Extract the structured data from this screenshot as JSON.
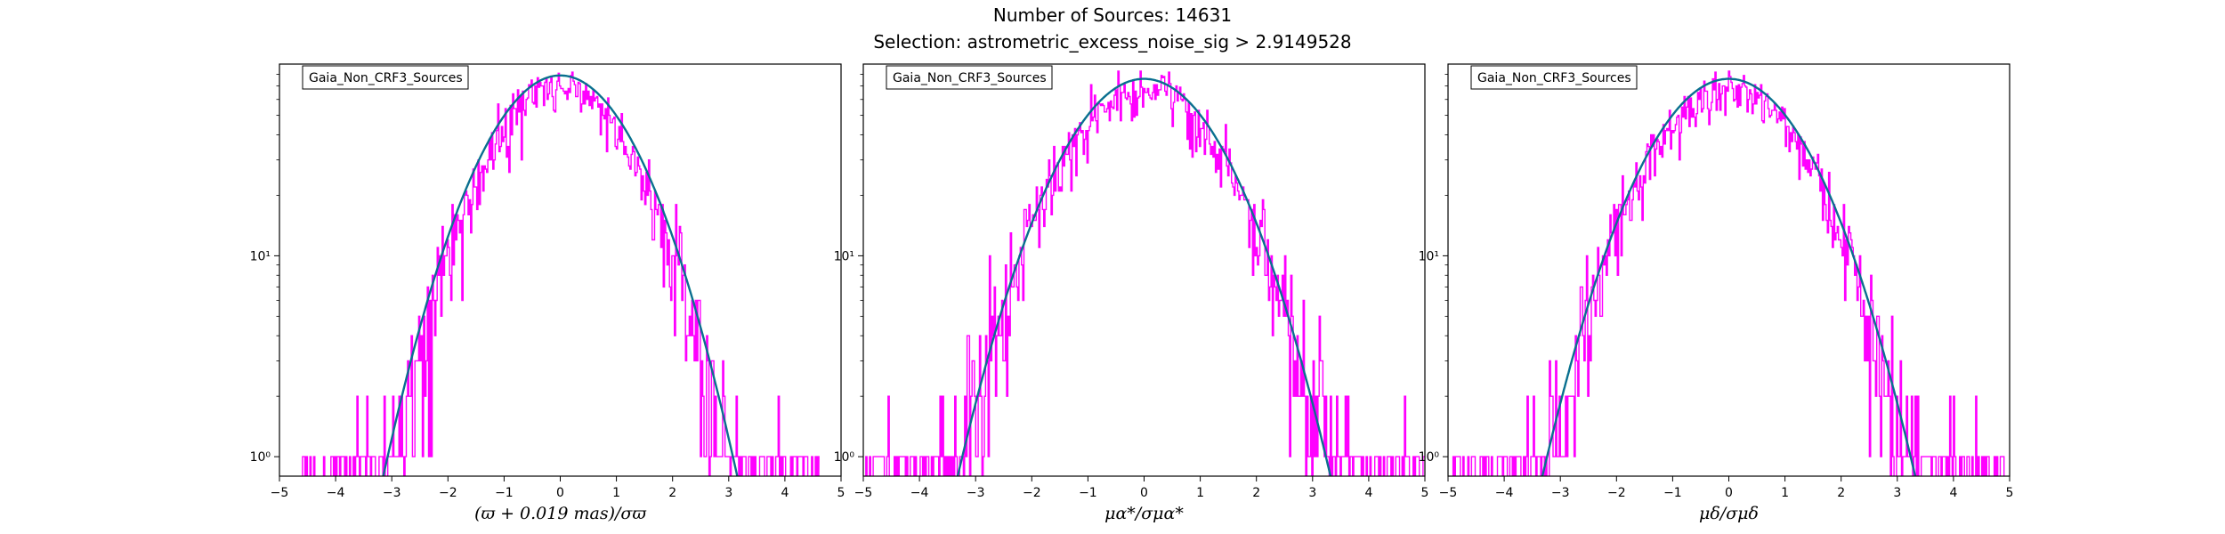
{
  "figure": {
    "title_line1": "Number of Sources: 14631",
    "title_line2": "Selection: astrometric_excess_noise_sig > 2.9149528"
  },
  "chart_data": [
    {
      "type": "line",
      "legend": "Gaia_Non_CRF3_Sources",
      "legend_placement": "top-left",
      "xlabel": "(ϖ + 0.019 mas)/σϖ",
      "xlim": [
        -5,
        5
      ],
      "ylim": [
        0.8,
        90
      ],
      "yscale": "log",
      "grid": false,
      "x_ticks": [
        "−5",
        "−4",
        "−3",
        "−2",
        "−1",
        "0",
        "1",
        "2",
        "3",
        "4",
        "5"
      ],
      "y_ticks": [
        {
          "value": 1,
          "label": "10⁰"
        },
        {
          "value": 10,
          "label": "10¹"
        }
      ],
      "series": [
        {
          "kind": "histogram",
          "color": "#ff00ff",
          "peak": 70,
          "x_min": -4.7,
          "x_max": 4.6,
          "width_sigma": 1.0
        },
        {
          "kind": "gaussian-fit",
          "colors": [
            "#007f7f",
            "#1f4fb4"
          ],
          "amplitude": 79,
          "mean": 0.0,
          "sigma": 1.04
        }
      ]
    },
    {
      "type": "line",
      "legend": "Gaia_Non_CRF3_Sources",
      "legend_placement": "top-left",
      "xlabel": "μα*/σμα*",
      "xlim": [
        -5,
        5
      ],
      "ylim": [
        0.8,
        90
      ],
      "yscale": "log",
      "grid": false,
      "x_ticks": [
        "−5",
        "−4",
        "−3",
        "−2",
        "−1",
        "0",
        "1",
        "2",
        "3",
        "4",
        "5"
      ],
      "y_ticks": [
        {
          "value": 1,
          "label": "10⁰"
        },
        {
          "value": 10,
          "label": "10¹"
        }
      ],
      "series": [
        {
          "kind": "histogram",
          "color": "#ff00ff",
          "peak": 68,
          "x_min": -5.0,
          "x_max": 5.0,
          "width_sigma": 1.1
        },
        {
          "kind": "gaussian-fit",
          "colors": [
            "#007f7f",
            "#1f4fb4"
          ],
          "amplitude": 76,
          "mean": 0.0,
          "sigma": 1.1
        }
      ]
    },
    {
      "type": "line",
      "legend": "Gaia_Non_CRF3_Sources",
      "legend_placement": "top-left",
      "xlabel": "μδ/σμδ",
      "xlim": [
        -5,
        5
      ],
      "ylim": [
        0.8,
        90
      ],
      "yscale": "log",
      "grid": false,
      "x_ticks": [
        "−5",
        "−4",
        "−3",
        "−2",
        "−1",
        "0",
        "1",
        "2",
        "3",
        "4",
        "5"
      ],
      "y_ticks": [
        {
          "value": 1,
          "label": "10⁰"
        },
        {
          "value": 10,
          "label": "10¹"
        }
      ],
      "series": [
        {
          "kind": "histogram",
          "color": "#ff00ff",
          "peak": 66,
          "x_min": -5.0,
          "x_max": 4.9,
          "width_sigma": 1.1
        },
        {
          "kind": "gaussian-fit",
          "colors": [
            "#007f7f",
            "#1f4fb4"
          ],
          "amplitude": 76,
          "mean": 0.0,
          "sigma": 1.1
        }
      ]
    }
  ]
}
